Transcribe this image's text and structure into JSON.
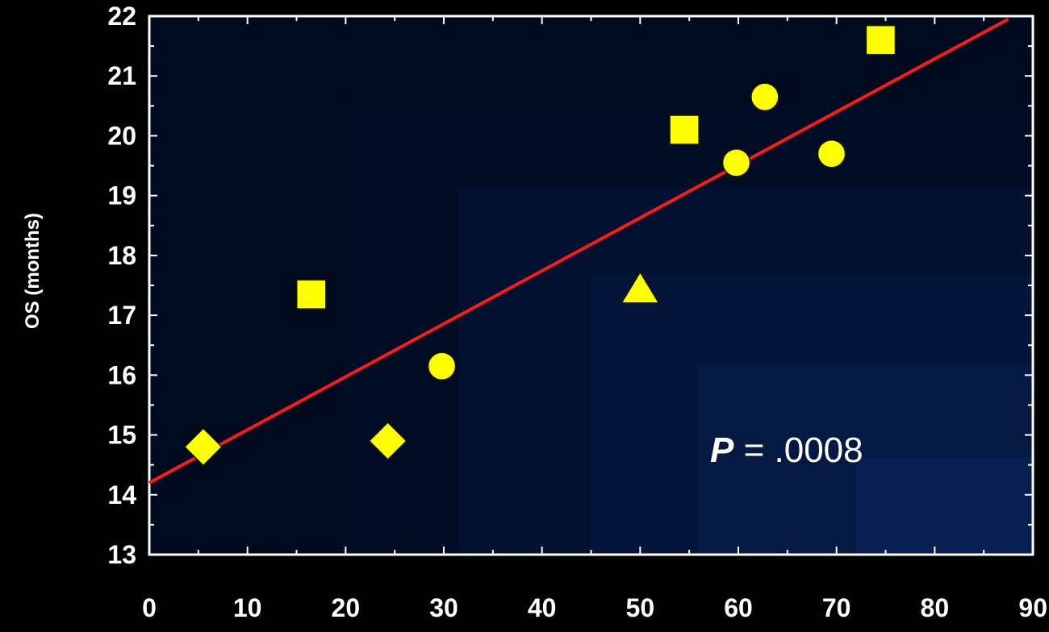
{
  "chart_data": {
    "type": "scatter",
    "title": "",
    "xlabel": "",
    "ylabel": "OS (months)",
    "xlim": [
      0,
      90
    ],
    "ylim": [
      13,
      22
    ],
    "x_ticks": [
      "0",
      "10",
      "20",
      "30",
      "40",
      "50",
      "60",
      "70",
      "80",
      "90"
    ],
    "y_ticks": [
      "13",
      "14",
      "15",
      "16",
      "17",
      "18",
      "19",
      "20",
      "21",
      "22"
    ],
    "grid": false,
    "points": [
      {
        "x": 5.5,
        "y": 14.8,
        "marker": "diamond"
      },
      {
        "x": 16.5,
        "y": 17.35,
        "marker": "square"
      },
      {
        "x": 24.3,
        "y": 14.9,
        "marker": "diamond"
      },
      {
        "x": 29.8,
        "y": 16.15,
        "marker": "circle"
      },
      {
        "x": 50.0,
        "y": 17.45,
        "marker": "triangle"
      },
      {
        "x": 54.5,
        "y": 20.1,
        "marker": "square"
      },
      {
        "x": 59.8,
        "y": 19.55,
        "marker": "circle"
      },
      {
        "x": 62.7,
        "y": 20.65,
        "marker": "circle"
      },
      {
        "x": 69.5,
        "y": 19.7,
        "marker": "circle"
      },
      {
        "x": 74.5,
        "y": 21.6,
        "marker": "square"
      }
    ],
    "regression_line": {
      "x": [
        0,
        87.5
      ],
      "y": [
        14.2,
        21.95
      ]
    },
    "annotation": {
      "italic": "P",
      "text": " = .0008"
    },
    "colors": {
      "background": "#000000",
      "plot_dark": "#000a1e",
      "plot_light": "#08235a",
      "marker": "#ffff00",
      "line": "#ff1a1a",
      "axis": "#ffffff"
    }
  }
}
